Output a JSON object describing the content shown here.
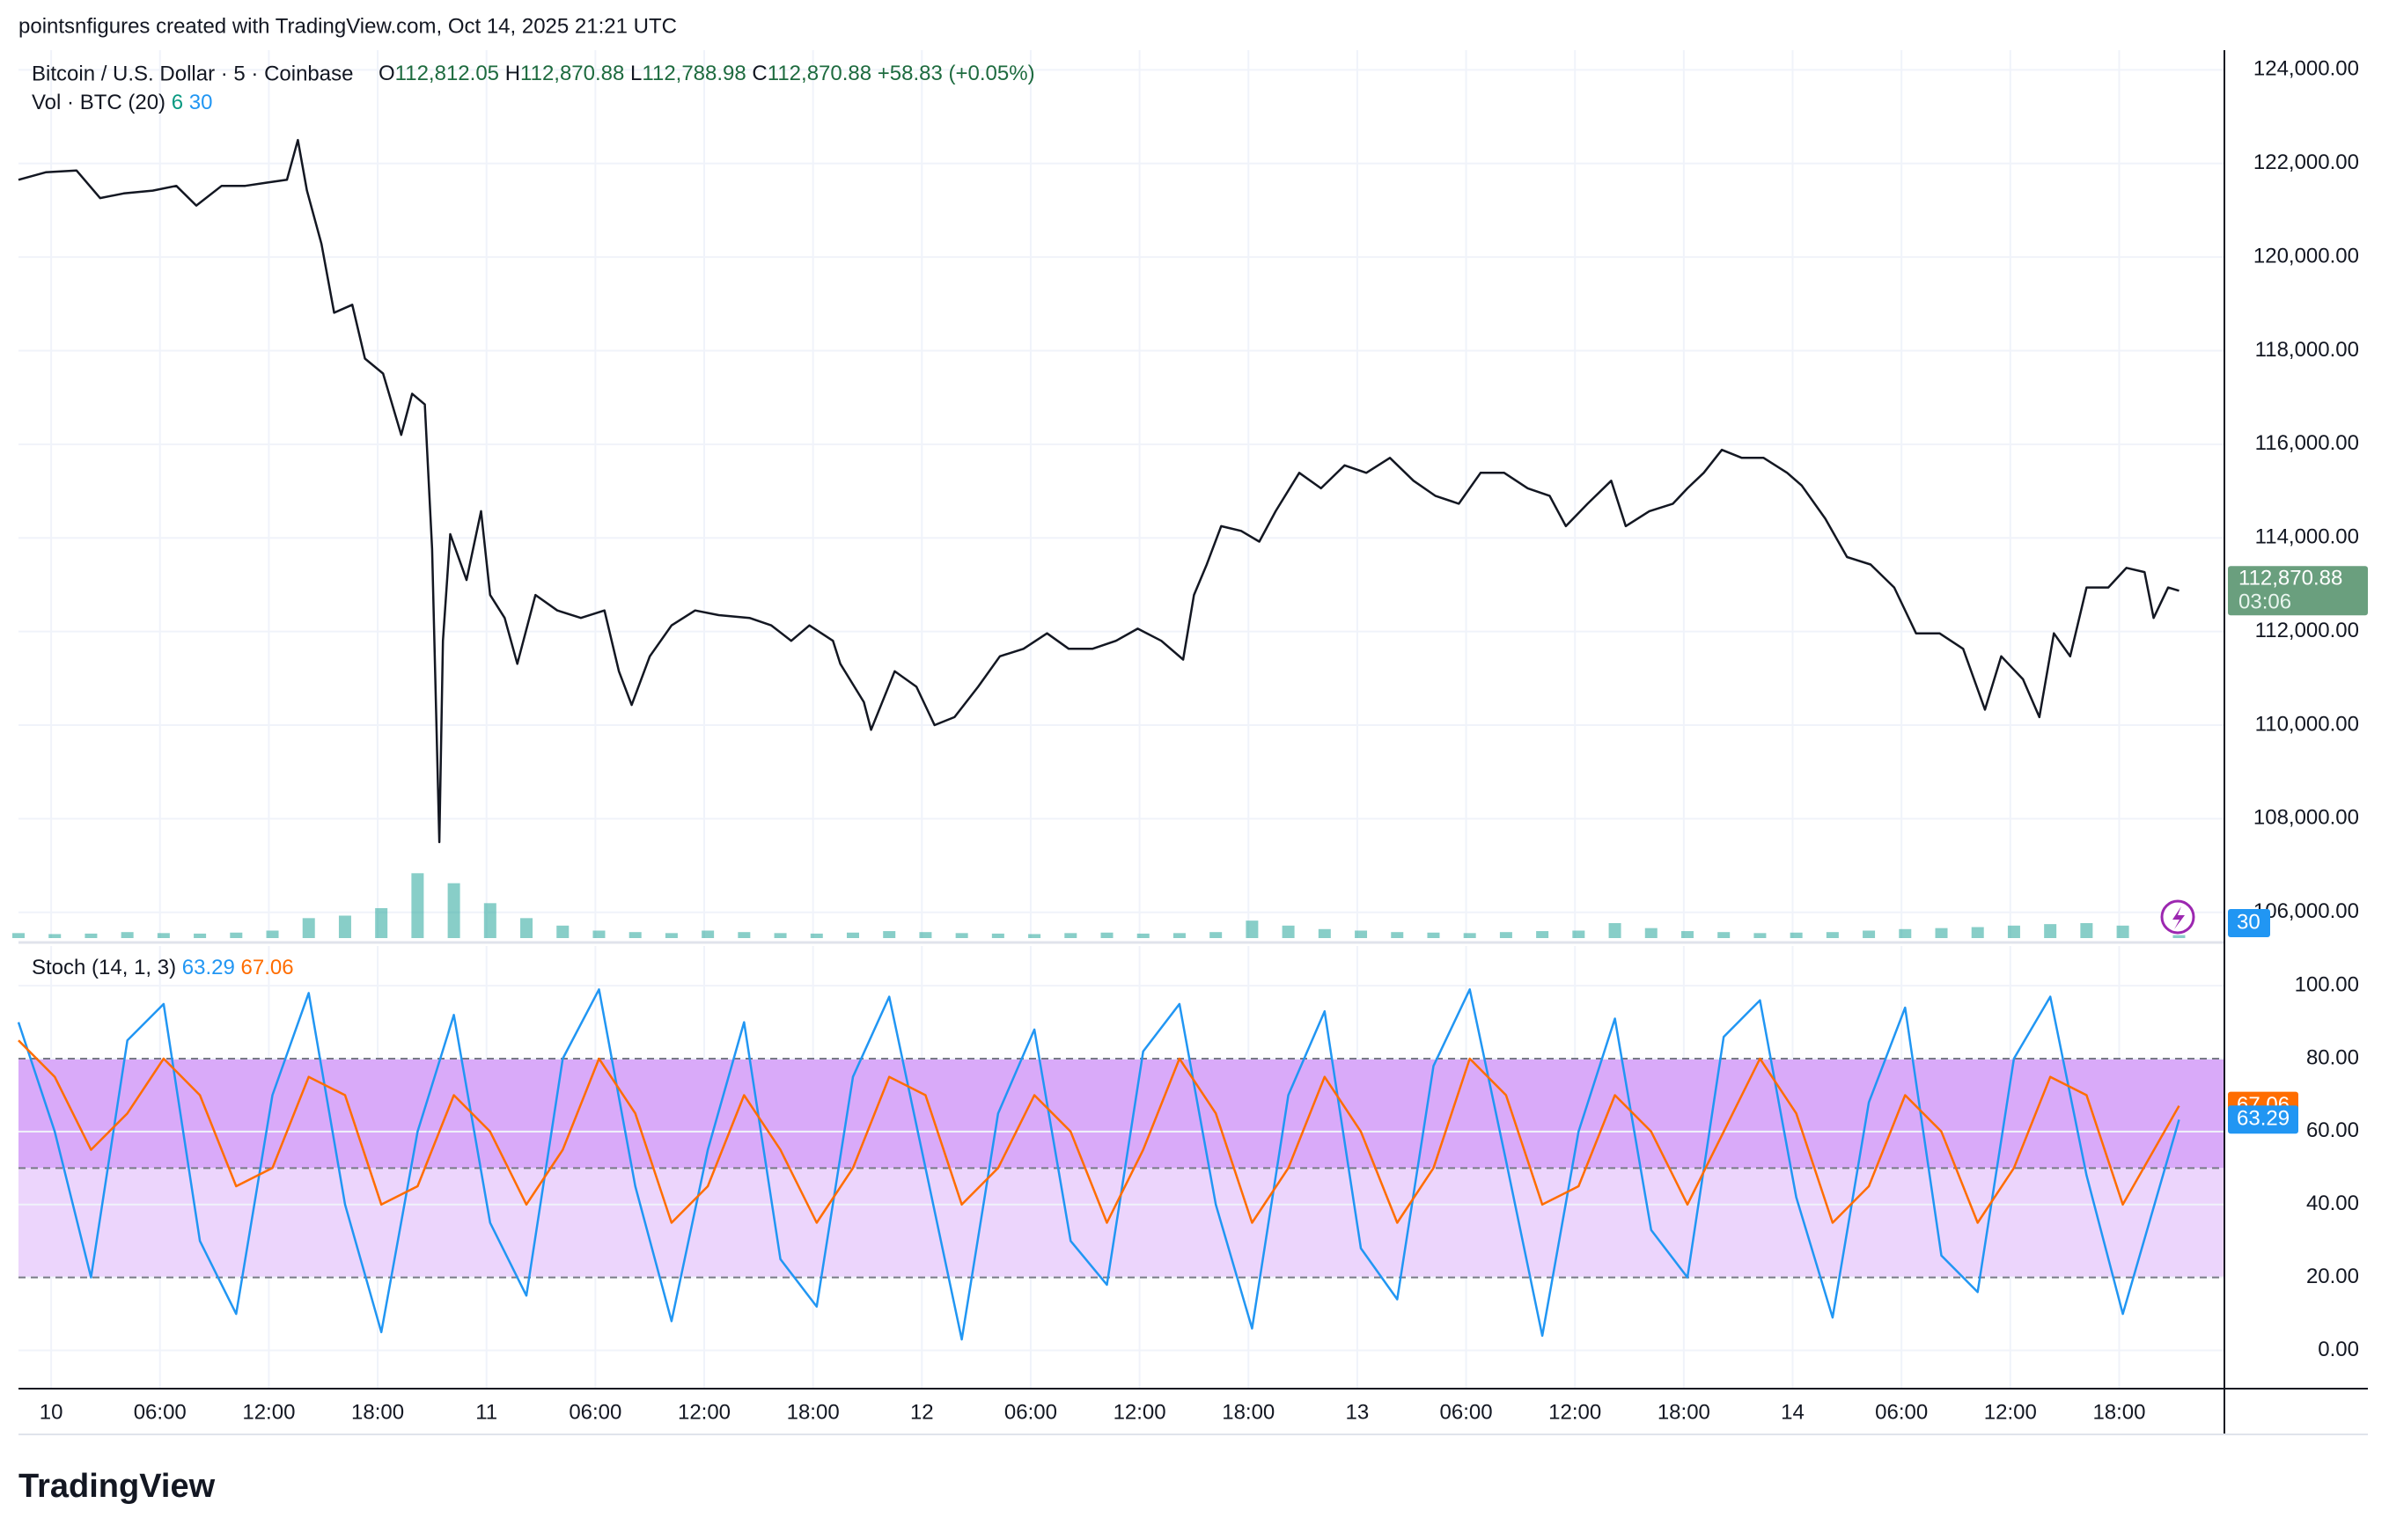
{
  "header": {
    "credit": "pointsnfigures created with TradingView.com, Oct 14, 2025 21:21 UTC"
  },
  "chart_data": [
    {
      "type": "line",
      "title": "Bitcoin / U.S. Dollar · 5 · Coinbase",
      "ohlc": [
        {
          "key": "O",
          "value": "112,812.05"
        },
        {
          "key": "H",
          "value": "112,870.88"
        },
        {
          "key": "L",
          "value": "112,788.98"
        },
        {
          "key": "C",
          "value": "112,870.88"
        }
      ],
      "change": "+58.83 (+0.05%)",
      "countdown": "03:06",
      "x": [
        -1.8,
        -0.3,
        1.4,
        2.7,
        4.0,
        5.6,
        6.9,
        8.0,
        9.4,
        10.7,
        11.9,
        13.0,
        13.6,
        14.1,
        14.9,
        15.6,
        16.6,
        17.3,
        18.3,
        19.3,
        19.9,
        20.6,
        21.0,
        21.4,
        21.6,
        22.0,
        22.9,
        23.7,
        24.2,
        25.0,
        25.7,
        26.7,
        27.9,
        29.2,
        30.5,
        31.3,
        32.0,
        33.0,
        34.2,
        35.5,
        36.8,
        38.5,
        39.7,
        40.8,
        41.8,
        43.1,
        43.5,
        44.8,
        45.2,
        46.5,
        47.7,
        48.7,
        49.8,
        51.1,
        52.3,
        53.6,
        54.9,
        56.1,
        57.4,
        58.7,
        59.9,
        61.2,
        62.4,
        63.0,
        63.7,
        64.5,
        65.6,
        66.6,
        67.5,
        68.8,
        70.0,
        71.3,
        72.5,
        73.8,
        75.1,
        76.3,
        77.6,
        78.8,
        80.1,
        81.4,
        82.6,
        83.5,
        84.7,
        86.0,
        86.8,
        88.1,
        89.4,
        90.2,
        91.1,
        92.1,
        93.2,
        94.4,
        95.7,
        96.5,
        97.8,
        99.0,
        100.3,
        101.6,
        102.8,
        104.1,
        105.4,
        106.6,
        107.5,
        108.7,
        109.6,
        110.4,
        111.3,
        112.2,
        113.4,
        114.4,
        115.4,
        115.9,
        116.7,
        117.3
      ],
      "series": [
        {
          "color": "#131722",
          "values": [
            121650,
            121810,
            121850,
            121260,
            121360,
            121420,
            121520,
            121100,
            121520,
            121520,
            121590,
            121650,
            122500,
            121420,
            120280,
            118810,
            118980,
            117830,
            117510,
            116200,
            117080,
            116850,
            113760,
            107500,
            111800,
            114080,
            113100,
            114570,
            112780,
            112290,
            111310,
            112780,
            112450,
            112290,
            112450,
            111150,
            110430,
            111470,
            112130,
            112450,
            112350,
            112290,
            112130,
            111800,
            112130,
            111800,
            111310,
            110490,
            109900,
            111150,
            110820,
            110000,
            110170,
            110820,
            111470,
            111630,
            111960,
            111630,
            111630,
            111800,
            112060,
            111800,
            111400,
            112780,
            113430,
            114250,
            114150,
            113920,
            114570,
            115390,
            115060,
            115550,
            115390,
            115710,
            115220,
            114900,
            114730,
            115390,
            115390,
            115060,
            114900,
            114250,
            114730,
            115220,
            114250,
            114570,
            114730,
            115060,
            115390,
            115880,
            115710,
            115710,
            115390,
            115120,
            114410,
            113590,
            113430,
            112940,
            111960,
            111960,
            111630,
            110330,
            111470,
            110980,
            110170,
            111960,
            111470,
            112940,
            112940,
            113360,
            113270,
            112290,
            112940,
            112870.88
          ]
        }
      ],
      "xlim": [
        -1.8,
        119.8
      ],
      "xticks": [
        {
          "value": 0,
          "label": "10"
        },
        {
          "value": 6,
          "label": "06:00"
        },
        {
          "value": 12,
          "label": "12:00"
        },
        {
          "value": 18,
          "label": "18:00"
        },
        {
          "value": 24,
          "label": "11"
        },
        {
          "value": 30,
          "label": "06:00"
        },
        {
          "value": 36,
          "label": "12:00"
        },
        {
          "value": 42,
          "label": "18:00"
        },
        {
          "value": 48,
          "label": "12"
        },
        {
          "value": 54,
          "label": "06:00"
        },
        {
          "value": 60,
          "label": "12:00"
        },
        {
          "value": 66,
          "label": "18:00"
        },
        {
          "value": 72,
          "label": "13"
        },
        {
          "value": 78,
          "label": "06:00"
        },
        {
          "value": 84,
          "label": "12:00"
        },
        {
          "value": 90,
          "label": "18:00"
        },
        {
          "value": 96,
          "label": "14"
        },
        {
          "value": 102,
          "label": "06:00"
        },
        {
          "value": 108,
          "label": "12:00"
        },
        {
          "value": 114,
          "label": "18:00"
        }
      ],
      "ylim": [
        105450,
        124420
      ],
      "yticks": [
        {
          "value": 106000,
          "label": "106,000.00"
        },
        {
          "value": 108000,
          "label": "108,000.00"
        },
        {
          "value": 110000,
          "label": "110,000.00"
        },
        {
          "value": 112000,
          "label": "112,000.00"
        },
        {
          "value": 114000,
          "label": "114,000.00"
        },
        {
          "value": 116000,
          "label": "116,000.00"
        },
        {
          "value": 118000,
          "label": "118,000.00"
        },
        {
          "value": 120000,
          "label": "120,000.00"
        },
        {
          "value": 122000,
          "label": "122,000.00"
        },
        {
          "value": 124000,
          "label": "124,000.00"
        }
      ],
      "grid": true,
      "tag_color": "#6a9f7e"
    },
    {
      "type": "bar",
      "title": "Vol · BTC (20)",
      "volume_last": 6,
      "volume_ma": 30,
      "x": [
        -1.8,
        0.2,
        2.2,
        4.2,
        6.2,
        8.2,
        10.2,
        12.2,
        14.2,
        16.2,
        18.2,
        20.2,
        22.2,
        24.2,
        26.2,
        28.2,
        30.2,
        32.2,
        34.2,
        36.2,
        38.2,
        40.2,
        42.2,
        44.2,
        46.2,
        48.2,
        50.2,
        52.2,
        54.2,
        56.2,
        58.2,
        60.2,
        62.2,
        64.2,
        66.2,
        68.2,
        70.2,
        72.2,
        74.2,
        76.2,
        78.2,
        80.2,
        82.2,
        84.2,
        86.2,
        88.2,
        90.2,
        92.2,
        94.2,
        96.2,
        98.2,
        100.2,
        102.2,
        104.2,
        106.2,
        108.2,
        110.2,
        112.2,
        114.2,
        117.3
      ],
      "values": [
        10,
        8,
        9,
        12,
        10,
        9,
        11,
        15,
        40,
        45,
        60,
        130,
        110,
        70,
        40,
        25,
        15,
        12,
        10,
        15,
        12,
        10,
        9,
        11,
        14,
        12,
        10,
        9,
        8,
        10,
        11,
        9,
        10,
        12,
        35,
        25,
        18,
        15,
        12,
        11,
        10,
        12,
        14,
        15,
        30,
        20,
        14,
        12,
        10,
        11,
        12,
        15,
        18,
        20,
        22,
        25,
        28,
        30,
        25,
        6
      ],
      "color": "#26a69a",
      "last_color": "#089981",
      "ma_color": "#2196f3",
      "ylim": [
        0,
        1780
      ]
    },
    {
      "type": "line",
      "title": "Stoch (14, 1, 3)",
      "x": [
        -1.8,
        0.2,
        2.2,
        4.2,
        6.2,
        8.2,
        10.2,
        12.2,
        14.2,
        16.2,
        18.2,
        20.2,
        22.2,
        24.2,
        26.2,
        28.2,
        30.2,
        32.2,
        34.2,
        36.2,
        38.2,
        40.2,
        42.2,
        44.2,
        46.2,
        48.2,
        50.2,
        52.2,
        54.2,
        56.2,
        58.2,
        60.2,
        62.2,
        64.2,
        66.2,
        68.2,
        70.2,
        72.2,
        74.2,
        76.2,
        78.2,
        80.2,
        82.2,
        84.2,
        86.2,
        88.2,
        90.2,
        92.2,
        94.2,
        96.2,
        98.2,
        100.2,
        102.2,
        104.2,
        106.2,
        108.2,
        110.2,
        112.2,
        114.2,
        117.3
      ],
      "series": [
        {
          "color": "#2196f3",
          "values": [
            90,
            60,
            20,
            85,
            95,
            30,
            10,
            70,
            98,
            40,
            5,
            60,
            92,
            35,
            15,
            80,
            99,
            45,
            8,
            55,
            90,
            25,
            12,
            75,
            97,
            50,
            3,
            65,
            88,
            30,
            18,
            82,
            95,
            40,
            6,
            70,
            93,
            28,
            14,
            78,
            99,
            52,
            4,
            60,
            91,
            33,
            20,
            86,
            96,
            42,
            9,
            68,
            94,
            26,
            16,
            80,
            97,
            48,
            10,
            63.29
          ]
        },
        {
          "color": "#ff6d00",
          "values": [
            85,
            75,
            55,
            65,
            80,
            70,
            45,
            50,
            75,
            70,
            40,
            45,
            70,
            60,
            40,
            55,
            80,
            65,
            35,
            45,
            70,
            55,
            35,
            50,
            75,
            70,
            40,
            50,
            70,
            60,
            35,
            55,
            80,
            65,
            35,
            50,
            75,
            60,
            35,
            50,
            80,
            70,
            40,
            45,
            70,
            60,
            40,
            60,
            80,
            65,
            35,
            45,
            70,
            60,
            35,
            50,
            75,
            70,
            40,
            67.06
          ]
        }
      ],
      "ylim": [
        -10.5,
        110.9
      ],
      "yticks": [
        {
          "value": 0,
          "label": "0.00"
        },
        {
          "value": 20,
          "label": "20.00"
        },
        {
          "value": 40,
          "label": "40.00"
        },
        {
          "value": 60,
          "label": "60.00"
        },
        {
          "value": 80,
          "label": "80.00"
        },
        {
          "value": 100,
          "label": "100.00"
        }
      ],
      "bands": [
        {
          "from": 50,
          "to": 80,
          "color": "#d9aaf9"
        },
        {
          "from": 20,
          "to": 50,
          "color": "#ecd5fc"
        }
      ],
      "hlines": [
        80,
        50,
        20
      ],
      "grid": true
    }
  ],
  "footer": {
    "logo": "TradingView"
  }
}
